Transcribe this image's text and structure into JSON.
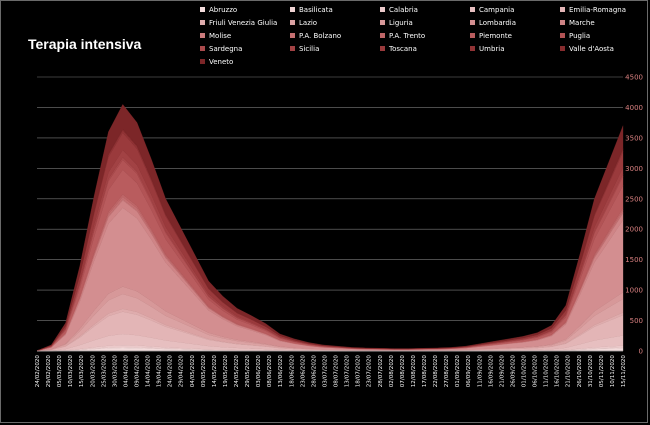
{
  "chart_data": {
    "type": "area",
    "stacked": true,
    "title": "Terapia intensiva",
    "xlabel": "",
    "ylabel": "",
    "ylim": [
      0,
      4500
    ],
    "y_ticks": [
      0,
      500,
      1000,
      1500,
      2000,
      2500,
      3000,
      3500,
      4000,
      4500
    ],
    "grid": true,
    "legend_position": "top",
    "tick_labels_x": [
      "24/02/2020",
      "29/02/2020",
      "05/03/2020",
      "10/03/2020",
      "15/03/2020",
      "20/03/2020",
      "25/03/2020",
      "30/03/2020",
      "04/04/2020",
      "09/04/2020",
      "14/04/2020",
      "19/04/2020",
      "24/04/2020",
      "29/04/2020",
      "04/05/2020",
      "09/05/2020",
      "14/05/2020",
      "19/05/2020",
      "24/05/2020",
      "29/05/2020",
      "03/06/2020",
      "08/06/2020",
      "13/06/2020",
      "18/06/2020",
      "23/06/2020",
      "28/06/2020",
      "03/07/2020",
      "08/07/2020",
      "13/07/2020",
      "18/07/2020",
      "23/07/2020",
      "28/07/2020",
      "02/08/2020",
      "07/08/2020",
      "12/08/2020",
      "17/08/2020",
      "22/08/2020",
      "27/08/2020",
      "01/09/2020",
      "06/09/2020",
      "11/09/2020",
      "16/09/2020",
      "21/09/2020",
      "26/09/2020",
      "01/10/2020",
      "06/10/2020",
      "11/10/2020",
      "16/10/2020",
      "21/10/2020",
      "26/10/2020",
      "31/10/2020",
      "05/11/2020",
      "10/11/2020",
      "15/11/2020"
    ],
    "total_values": [
      5,
      100,
      460,
      1400,
      2550,
      3600,
      4050,
      3750,
      3150,
      2500,
      2050,
      1600,
      1150,
      900,
      700,
      580,
      450,
      280,
      200,
      140,
      100,
      80,
      60,
      50,
      45,
      40,
      40,
      45,
      50,
      60,
      80,
      120,
      160,
      200,
      240,
      300,
      420,
      750,
      1600,
      2500,
      3100,
      3700
    ],
    "series": [
      {
        "name": "Abruzzo",
        "color": "#f3dcdc",
        "share": 0.012
      },
      {
        "name": "Basilicata",
        "color": "#efd3d3",
        "share": 0.004
      },
      {
        "name": "Calabria",
        "color": "#ebc9ca",
        "share": 0.008
      },
      {
        "name": "Campania",
        "color": "#e7bfc0",
        "share": 0.045
      },
      {
        "name": "Emilia-Romagna",
        "color": "#e3b5b6",
        "share": 0.09
      },
      {
        "name": "Friuli Venezia Giulia",
        "color": "#dfacad",
        "share": 0.012
      },
      {
        "name": "Lazio",
        "color": "#dba2a3",
        "share": 0.06
      },
      {
        "name": "Liguria",
        "color": "#d79899",
        "share": 0.03
      },
      {
        "name": "Lombardia",
        "color": "#d38e90",
        "share": 0.32
      },
      {
        "name": "Marche",
        "color": "#cf8486",
        "share": 0.03
      },
      {
        "name": "Molise",
        "color": "#ca7a7c",
        "share": 0.004
      },
      {
        "name": "P.A. Bolzano",
        "color": "#c57072",
        "share": 0.01
      },
      {
        "name": "P.A. Trento",
        "color": "#bf6668",
        "share": 0.01
      },
      {
        "name": "Piemonte",
        "color": "#b95c5e",
        "share": 0.1
      },
      {
        "name": "Puglia",
        "color": "#b25355",
        "share": 0.04
      },
      {
        "name": "Sardegna",
        "color": "#aa4a4c",
        "share": 0.01
      },
      {
        "name": "Sicilia",
        "color": "#a24244",
        "share": 0.03
      },
      {
        "name": "Toscana",
        "color": "#9a3a3c",
        "share": 0.07
      },
      {
        "name": "Umbria",
        "color": "#913335",
        "share": 0.01
      },
      {
        "name": "Valle d'Aosta",
        "color": "#872c2e",
        "share": 0.005
      },
      {
        "name": "Veneto",
        "color": "#7c2628",
        "share": 0.1
      }
    ]
  }
}
